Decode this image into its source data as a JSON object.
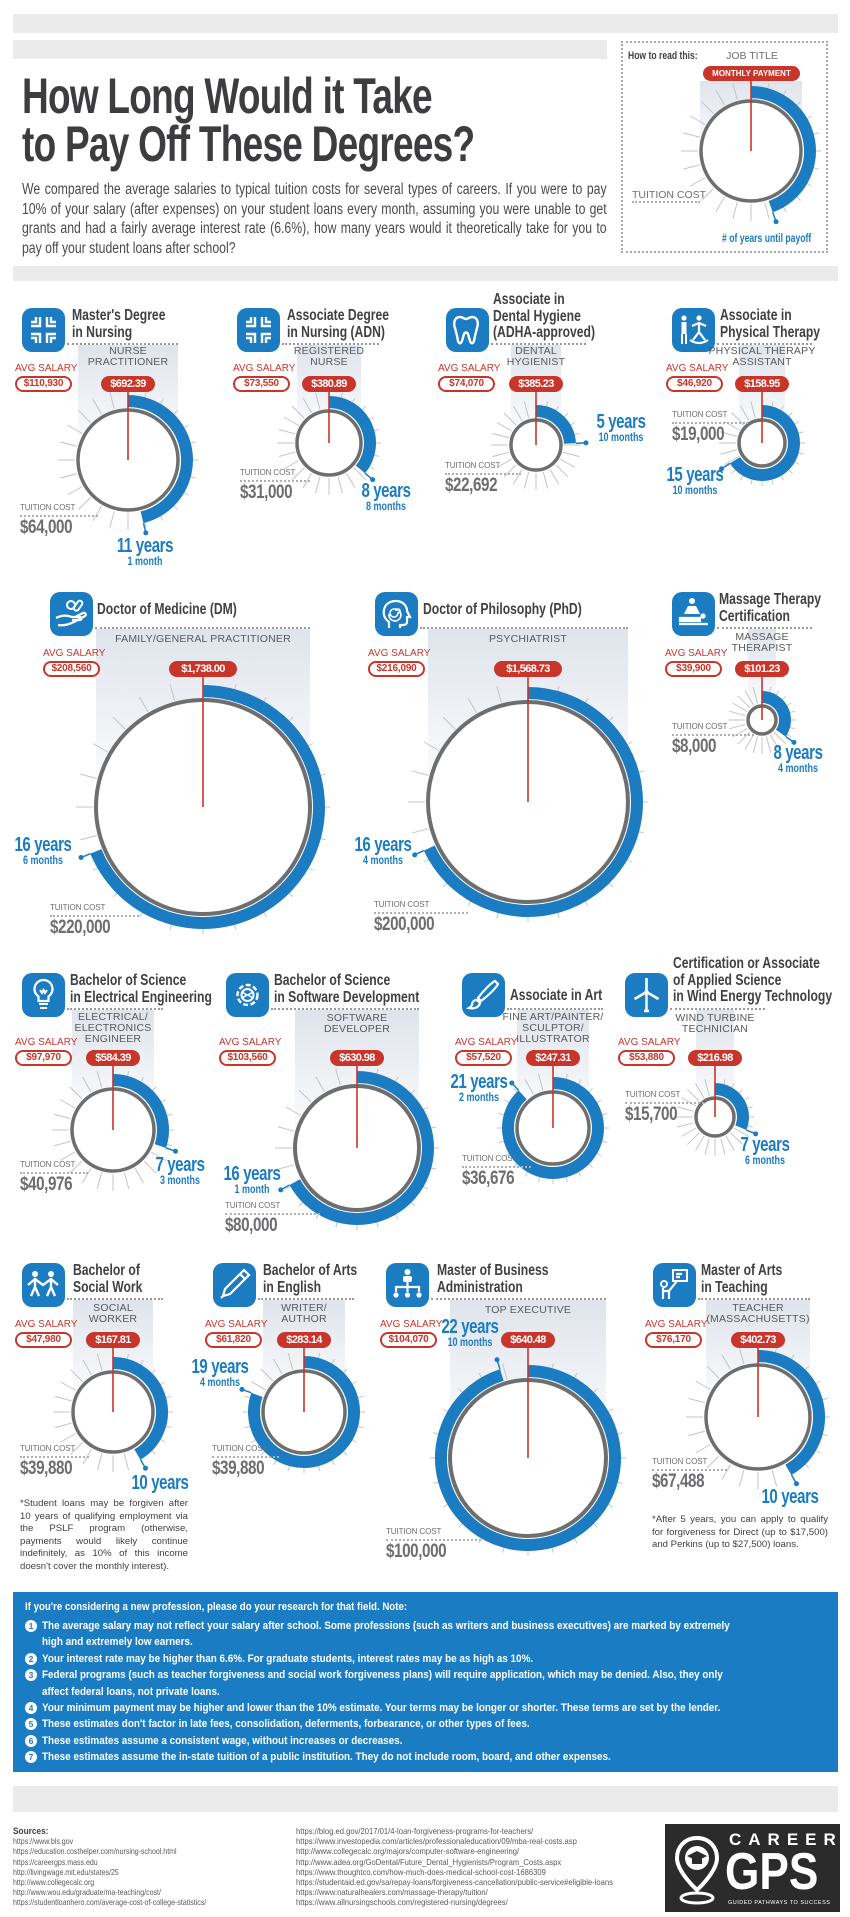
{
  "header": {
    "title_line1": "How Long Would it Take",
    "title_line2": "to Pay Off These Degrees?",
    "intro": "We compared the average salaries to typical tuition costs for several types of careers. If you were to pay 10% of your salary (after expenses) on your student loans every month, assuming you were unable to get grants and had a fairly average interest rate (6.6%), how many years would it theoretically take for you to pay off your student loans after school?"
  },
  "how_to_read": {
    "label": "How to read this:",
    "job_title": "JOB TITLE",
    "monthly_payment": "MONTHLY PAYMENT",
    "tuition_cost": "TUITION COST",
    "years_until_payoff": "# of years until payoff"
  },
  "labels": {
    "avg_salary": "AVG SALARY",
    "tuition_cost": "TUITION COST"
  },
  "colors": {
    "blue": "#1b7cc1",
    "red": "#c8352b",
    "gray": "#6d6e70"
  },
  "degrees": [
    {
      "icon": "nursing-cross-icon",
      "title_lines": [
        "Master's Degree",
        "in Nursing"
      ],
      "job_lines": [
        "NURSE",
        "PRACTITIONER"
      ],
      "avg_salary": "$110,930",
      "monthly_payment": "$692.39",
      "tuition": "$64,000",
      "years": "11 years",
      "months": "1 month",
      "payoff_years": 11.083
    },
    {
      "icon": "nursing-cross-icon",
      "title_lines": [
        "Associate Degree",
        "in Nursing (ADN)"
      ],
      "job_lines": [
        "REGISTERED",
        "NURSE"
      ],
      "avg_salary": "$73,550",
      "monthly_payment": "$380.89",
      "tuition": "$31,000",
      "years": "8 years",
      "months": "8 months",
      "payoff_years": 8.667
    },
    {
      "icon": "tooth-icon",
      "title_lines": [
        "Associate in",
        "Dental Hygiene",
        "(ADHA-approved)"
      ],
      "job_lines": [
        "DENTAL",
        "HYGIENIST"
      ],
      "avg_salary": "$74,070",
      "monthly_payment": "$385.23",
      "tuition": "$22,692",
      "years": "5 years",
      "months": "10 months",
      "payoff_years": 5.833
    },
    {
      "icon": "physical-therapy-icon",
      "title_lines": [
        "Associate in",
        "Physical Therapy"
      ],
      "job_lines": [
        "PHYSICAL THERAPY",
        "ASSISTANT"
      ],
      "avg_salary": "$46,920",
      "monthly_payment": "$158.95",
      "tuition": "$19,000",
      "years": "15 years",
      "months": "10 months",
      "payoff_years": 15.833
    },
    {
      "icon": "hand-pills-icon",
      "title_lines": [
        "Doctor of Medicine (DM)"
      ],
      "job_lines": [
        "FAMILY/GENERAL PRACTITIONER"
      ],
      "avg_salary": "$208,560",
      "monthly_payment": "$1,738.00",
      "tuition": "$220,000",
      "years": "16 years",
      "months": "6 months",
      "payoff_years": 16.5
    },
    {
      "icon": "head-spiral-icon",
      "title_lines": [
        "Doctor of Philosophy (PhD)"
      ],
      "job_lines": [
        "PSYCHIATRIST"
      ],
      "avg_salary": "$216,090",
      "monthly_payment": "$1,568.73",
      "tuition": "$200,000",
      "years": "16 years",
      "months": "4 months",
      "payoff_years": 16.333
    },
    {
      "icon": "massage-icon",
      "title_lines": [
        "Massage Therapy",
        "Certification"
      ],
      "job_lines": [
        "MASSAGE",
        "THERAPIST"
      ],
      "avg_salary": "$39,900",
      "monthly_payment": "$101.23",
      "tuition": "$8,000",
      "years": "8 years",
      "months": "4 months",
      "payoff_years": 8.333
    },
    {
      "icon": "lightbulb-icon",
      "title_lines": [
        "Bachelor of Science",
        "in Electrical Engineering"
      ],
      "job_lines": [
        "ELECTRICAL/",
        "ELECTRONICS",
        "ENGINEER"
      ],
      "avg_salary": "$97,970",
      "monthly_payment": "$584.39",
      "tuition": "$40,976",
      "years": "7 years",
      "months": "3 months",
      "payoff_years": 7.25
    },
    {
      "icon": "gear-code-icon",
      "title_lines": [
        "Bachelor of Science",
        "in Software Development"
      ],
      "job_lines": [
        "SOFTWARE",
        "DEVELOPER"
      ],
      "avg_salary": "$103,560",
      "monthly_payment": "$630.98",
      "tuition": "$80,000",
      "years": "16 years",
      "months": "1 month",
      "payoff_years": 16.083
    },
    {
      "icon": "paintbrush-icon",
      "title_lines": [
        "Associate in Art"
      ],
      "job_lines": [
        "FINE ART/PAINTER/",
        "SCULPTOR/",
        "ILLUSTRATOR"
      ],
      "avg_salary": "$57,520",
      "monthly_payment": "$247.31",
      "tuition": "$36,676",
      "years": "21 years",
      "months": "2 months",
      "payoff_years": 21.167
    },
    {
      "icon": "wind-turbine-icon",
      "title_lines": [
        "Certification or Associate",
        "of Applied Science",
        "in Wind Energy Technology"
      ],
      "job_lines": [
        "WIND TURBINE",
        "TECHNICIAN"
      ],
      "avg_salary": "$53,880",
      "monthly_payment": "$216.98",
      "tuition": "$15,700",
      "years": "7 years",
      "months": "6 months",
      "payoff_years": 7.5
    },
    {
      "icon": "people-holding-hands-icon",
      "title_lines": [
        "Bachelor of",
        "Social Work"
      ],
      "job_lines": [
        "SOCIAL",
        "WORKER"
      ],
      "avg_salary": "$47,980",
      "monthly_payment": "$167.81",
      "tuition": "$39,880",
      "years": "10 years",
      "payoff_years": 10,
      "note": "*Student loans may be forgiven after 10 years of qualifying employment via the PSLF program (otherwise, payments would likely continue indefinitely, as 10% of this income doesn't cover the monthly interest)."
    },
    {
      "icon": "pen-icon",
      "title_lines": [
        "Bachelor of Arts",
        "in English"
      ],
      "job_lines": [
        "WRITER/",
        "AUTHOR"
      ],
      "avg_salary": "$61,820",
      "monthly_payment": "$283.14",
      "tuition": "$39,880",
      "years": "19 years",
      "months": "4 months",
      "payoff_years": 19.333
    },
    {
      "icon": "org-chart-icon",
      "title_lines": [
        "Master of Business",
        "Administration"
      ],
      "job_lines": [
        "TOP EXECUTIVE"
      ],
      "avg_salary": "$104,070",
      "monthly_payment": "$640.48",
      "tuition": "$100,000",
      "years": "22 years",
      "months": "10 months",
      "payoff_years": 22.833
    },
    {
      "icon": "teacher-icon",
      "title_lines": [
        "Master of Arts",
        "in Teaching"
      ],
      "job_lines": [
        "TEACHER",
        "(MASSACHUSETTS)"
      ],
      "avg_salary": "$76,170",
      "monthly_payment": "$402.73",
      "tuition": "$67,488",
      "years": "10 years",
      "payoff_years": 10,
      "note": "*After 5 years, you can apply to qualify for forgiveness for Direct (up to $17,500) and Perkins (up to $27,500) loans."
    }
  ],
  "notes": {
    "title": "If you're considering a new profession, please do your research for that field. Note:",
    "items": [
      {
        "number": "1",
        "text": "The average salary may not reflect your salary after school. Some professions (such as writers and business executives) are marked by extremely high and extremely low earners."
      },
      {
        "number": "2",
        "text": "Your interest rate may be higher than 6.6%. For graduate students, interest rates may be as high as 10%."
      },
      {
        "number": "3",
        "text": "Federal programs (such as teacher forgiveness and social work forgiveness plans) will require application, which may be denied. Also, they only affect federal loans, not private loans."
      },
      {
        "number": "4",
        "text": "Your minimum payment may be higher and lower than the 10% estimate. Your terms may be longer or shorter. These terms are set by the lender."
      },
      {
        "number": "5",
        "text": "These estimates don't factor in late fees, consolidation, deferments, forbearance, or other types of fees."
      },
      {
        "number": "6",
        "text": "These estimates assume a consistent wage, without increases or decreases."
      },
      {
        "number": "7",
        "text": "These estimates assume the in-state tuition of a public institution. They do not include room, board, and other expenses."
      }
    ]
  },
  "sources": {
    "title": "Sources:",
    "col1": [
      "https://www.bls.gov",
      "https://education.costhelper.com/nursing-school.html",
      "https://careergps.mass.edu",
      "http://livingwage.mit.edu/states/25",
      "http://www.collegecalc.org",
      "http://www.wou.edu/graduate/ma-teaching/cost/",
      "https://studentloanhero.com/average-cost-of-college-statistics/"
    ],
    "col2": [
      "https://blog.ed.gov/2017/01/4-loan-forgiveness-programs-for-teachers/",
      "https://www.investopedia.com/articles/professionaleducation/09/mba-real-costs.asp",
      "http://www.collegecalc.org/majors/computer-software-engineering/",
      "http://www.adea.org/GoDental/Future_Dental_Hygienists/Program_Costs.aspx",
      "https://www.thoughtco.com/how-much-does-medical-school-cost-1686309",
      "https://studentaid.ed.gov/sa/repay-loans/forgiveness-cancellation/public-service#eligible-loans",
      "https://www.naturalhealers.com/massage-therapy/tuition/",
      "https://www.allnursingschools.com/registered-nursing/degrees/"
    ]
  },
  "logo": {
    "line1": "CAREER",
    "line2": "GPS",
    "tagline": "GUIDED PATHWAYS TO SUCCESS"
  }
}
